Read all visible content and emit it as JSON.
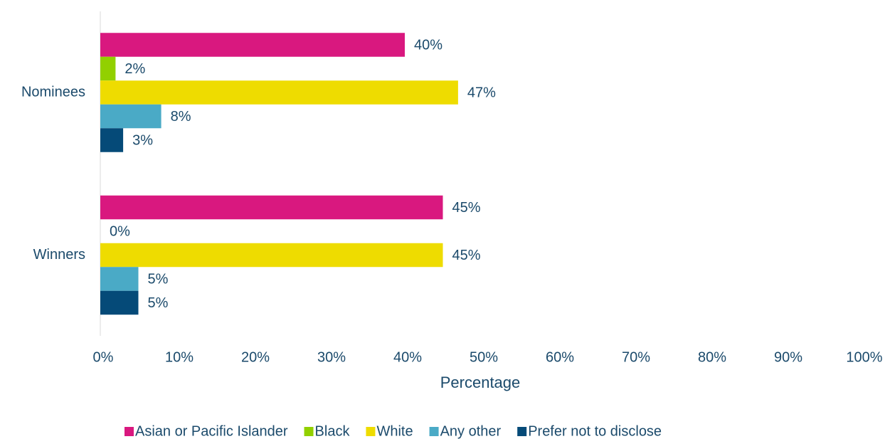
{
  "chart_data": {
    "type": "hbar",
    "x_label": "Percentage",
    "categories": [
      "Nominees",
      "Winners"
    ],
    "series": [
      {
        "name": "Asian or Pacific Islander",
        "color": "#d9187f",
        "values": [
          40,
          45
        ],
        "value_labels": [
          "40%",
          "45%"
        ]
      },
      {
        "name": "Black",
        "color": "#92d000",
        "values": [
          2,
          0
        ],
        "value_labels": [
          "2%",
          "0%"
        ]
      },
      {
        "name": "White",
        "color": "#eedc00",
        "values": [
          47,
          45
        ],
        "value_labels": [
          "47%",
          "45%"
        ]
      },
      {
        "name": "Any other",
        "color": "#4aaac6",
        "values": [
          8,
          5
        ],
        "value_labels": [
          "8%",
          "5%"
        ]
      },
      {
        "name": "Prefer not to disclose",
        "color": "#054a78",
        "values": [
          3,
          5
        ],
        "value_labels": [
          "3%",
          "5%"
        ]
      }
    ],
    "xlim": [
      0,
      100
    ],
    "xticks": [
      {
        "value": 0,
        "label": "0%"
      },
      {
        "value": 10,
        "label": "10%"
      },
      {
        "value": 20,
        "label": "20%"
      },
      {
        "value": 30,
        "label": "30%"
      },
      {
        "value": 40,
        "label": "40%"
      },
      {
        "value": 50,
        "label": "50%"
      },
      {
        "value": 60,
        "label": "60%"
      },
      {
        "value": 70,
        "label": "70%"
      },
      {
        "value": 80,
        "label": "80%"
      },
      {
        "value": 90,
        "label": "90%"
      },
      {
        "value": 100,
        "label": "100%"
      }
    ],
    "legend": "bottom"
  }
}
